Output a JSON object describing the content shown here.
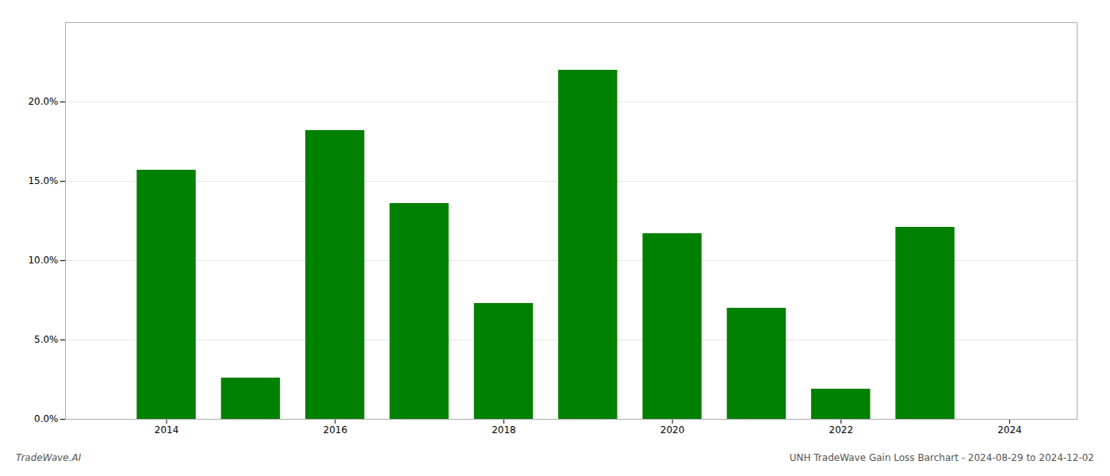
{
  "chart_data": {
    "type": "bar",
    "x": [
      2014,
      2015,
      2016,
      2017,
      2018,
      2019,
      2020,
      2021,
      2022,
      2023
    ],
    "values": [
      0.157,
      0.026,
      0.182,
      0.136,
      0.073,
      0.22,
      0.117,
      0.07,
      0.019,
      0.121
    ],
    "color": "#008000",
    "xlim": [
      2012.8,
      2024.8
    ],
    "xticks": [
      2014,
      2016,
      2018,
      2020,
      2022,
      2024
    ],
    "ylim": [
      0,
      0.25
    ],
    "yticks": [
      {
        "value": 0.0,
        "label": "0.0%"
      },
      {
        "value": 0.05,
        "label": "5.0%"
      },
      {
        "value": 0.1,
        "label": "10.0%"
      },
      {
        "value": 0.15,
        "label": "15.0%"
      },
      {
        "value": 0.2,
        "label": "20.0%"
      }
    ],
    "grid": true,
    "annotations": [
      "TradeWave.AI",
      "UNH TradeWave Gain Loss Barchart - 2024-08-29 to 2024-12-02"
    ]
  }
}
